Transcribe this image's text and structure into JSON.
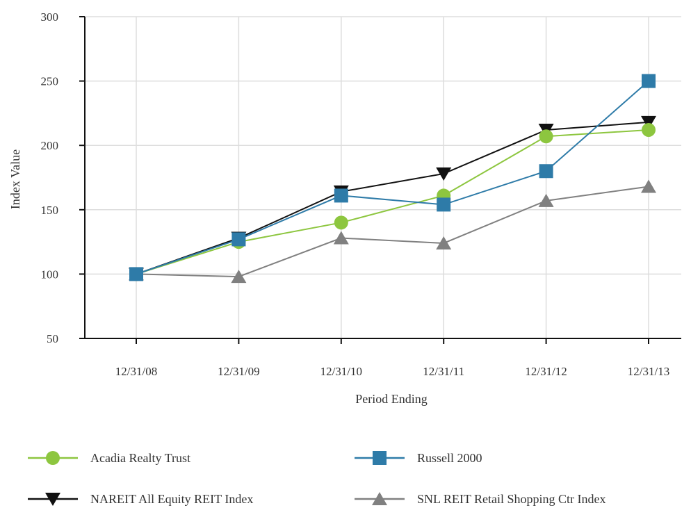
{
  "chart_data": {
    "type": "line",
    "title": "",
    "xlabel": "Period Ending",
    "ylabel": "Index Value",
    "categories": [
      "12/31/08",
      "12/31/09",
      "12/31/10",
      "12/31/11",
      "12/31/12",
      "12/31/13"
    ],
    "ylim": [
      50,
      300
    ],
    "yticks": [
      50,
      100,
      150,
      200,
      250,
      300
    ],
    "grid": true,
    "legend_position": "bottom",
    "series": [
      {
        "name": "Acadia Realty Trust",
        "values": [
          100,
          125,
          140,
          161,
          207,
          212
        ],
        "color": "#8dc63f",
        "marker": "circle"
      },
      {
        "name": "Russell 2000",
        "values": [
          100,
          127,
          161,
          154,
          180,
          250
        ],
        "color": "#2e7ba8",
        "marker": "square"
      },
      {
        "name": "NAREIT All Equity REIT Index",
        "values": [
          100,
          128,
          164,
          178,
          212,
          218
        ],
        "color": "#111111",
        "marker": "triangle-down"
      },
      {
        "name": "SNL REIT Retail Shopping Ctr Index",
        "values": [
          100,
          98,
          128,
          124,
          157,
          168
        ],
        "color": "#808080",
        "marker": "triangle-up"
      }
    ]
  }
}
